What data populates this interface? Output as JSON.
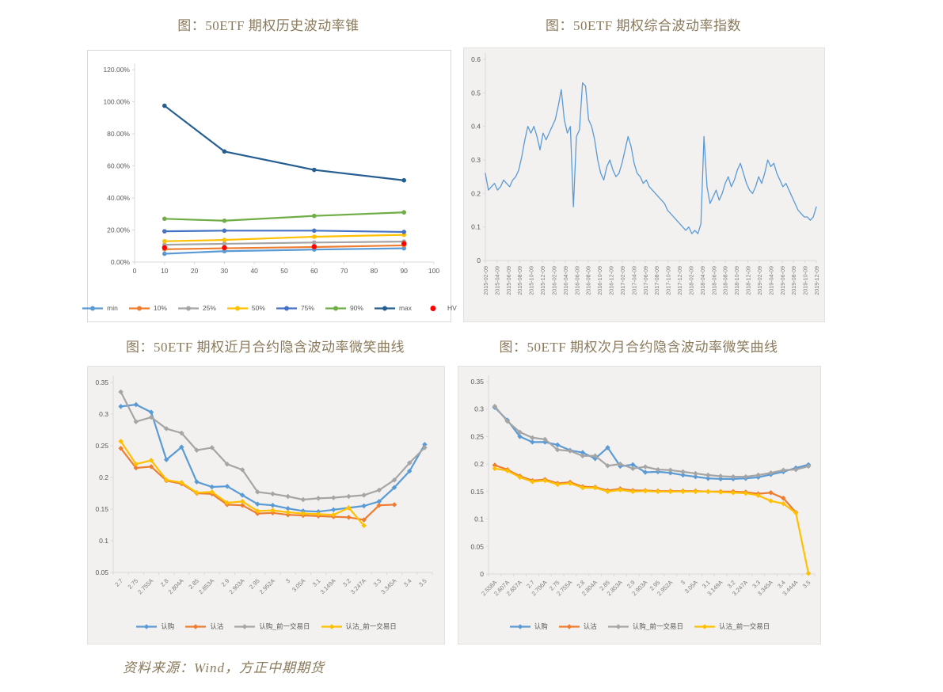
{
  "page": {
    "source_note": "资料来源：Wind，方正中期期货"
  },
  "colors": {
    "title_text": "#8a7a5c",
    "axis_text": "#595959",
    "tick_text": "#7f7f7f",
    "axis_line": "#d9d9d9",
    "light_blue": "#5B9BD5",
    "orange": "#ED7D31",
    "gray": "#A5A5A5",
    "gold": "#FFC000",
    "mid_blue": "#4472C4",
    "green": "#70AD47",
    "dark_blue": "#255E91",
    "red": "#FF0000"
  },
  "chart_data": [
    {
      "type": "line",
      "title": "图：50ETF 期权历史波动率锥",
      "x": [
        10,
        30,
        60,
        90
      ],
      "xlim": [
        0,
        100
      ],
      "xticks": [
        0,
        10,
        20,
        30,
        40,
        50,
        60,
        70,
        80,
        90,
        100
      ],
      "ylim": [
        0,
        1.2
      ],
      "yticks": [
        0,
        0.2,
        0.4,
        0.6,
        0.8,
        1.0,
        1.2
      ],
      "ytick_labels": [
        "0.00%",
        "20.00%",
        "40.00%",
        "60.00%",
        "80.00%",
        "100.00%",
        "120.00%"
      ],
      "legend_position": "bottom",
      "series": [
        {
          "name": "min",
          "color": "#5B9BD5",
          "values": [
            0.052,
            0.068,
            0.078,
            0.086
          ]
        },
        {
          "name": "10%",
          "color": "#ED7D31",
          "values": [
            0.08,
            0.086,
            0.094,
            0.104
          ]
        },
        {
          "name": "25%",
          "color": "#A5A5A5",
          "values": [
            0.108,
            0.114,
            0.122,
            0.128
          ]
        },
        {
          "name": "50%",
          "color": "#FFC000",
          "values": [
            0.13,
            0.138,
            0.158,
            0.17
          ]
        },
        {
          "name": "75%",
          "color": "#4472C4",
          "values": [
            0.192,
            0.196,
            0.196,
            0.188
          ]
        },
        {
          "name": "90%",
          "color": "#70AD47",
          "values": [
            0.27,
            0.258,
            0.288,
            0.31
          ]
        },
        {
          "name": "max",
          "color": "#255E91",
          "values": [
            0.975,
            0.69,
            0.575,
            0.51
          ]
        },
        {
          "name": "HV",
          "color": "#FF0000",
          "values": [
            0.09,
            0.09,
            0.096,
            0.115
          ],
          "markers_only": true,
          "legend_marker": "dot"
        }
      ]
    },
    {
      "type": "line",
      "title": "图：50ETF 期权综合波动率指数",
      "ylim": [
        0,
        0.6
      ],
      "yticks": [
        0,
        0.1,
        0.2,
        0.3,
        0.4,
        0.5,
        0.6
      ],
      "ytick_labels": [
        "0",
        "0.1",
        "0.2",
        "0.3",
        "0.4",
        "0.5",
        "0.6"
      ],
      "xlabels_spread": true,
      "xlabels": [
        "2015-02-09",
        "2015-04-09",
        "2015-06-09",
        "2015-08-09",
        "2015-10-09",
        "2015-12-09",
        "2016-02-09",
        "2016-04-09",
        "2016-06-09",
        "2016-08-09",
        "2016-10-09",
        "2016-12-09",
        "2017-02-09",
        "2017-04-09",
        "2017-06-09",
        "2017-08-09",
        "2017-10-09",
        "2017-12-09",
        "2018-02-09",
        "2018-04-09",
        "2018-06-09",
        "2018-08-09",
        "2018-10-09",
        "2018-12-09",
        "2019-02-09",
        "2019-04-09",
        "2019-06-09",
        "2019-08-09",
        "2019-10-09",
        "2019-12-09"
      ],
      "legend_position": "none",
      "series": [
        {
          "color": "#5B9BD5",
          "values": [
            0.26,
            0.21,
            0.22,
            0.23,
            0.21,
            0.22,
            0.24,
            0.23,
            0.22,
            0.24,
            0.25,
            0.27,
            0.31,
            0.36,
            0.4,
            0.38,
            0.4,
            0.37,
            0.33,
            0.38,
            0.36,
            0.38,
            0.4,
            0.42,
            0.46,
            0.51,
            0.42,
            0.38,
            0.4,
            0.16,
            0.37,
            0.39,
            0.53,
            0.52,
            0.42,
            0.4,
            0.36,
            0.3,
            0.26,
            0.24,
            0.28,
            0.3,
            0.27,
            0.25,
            0.26,
            0.29,
            0.33,
            0.37,
            0.34,
            0.29,
            0.26,
            0.25,
            0.23,
            0.24,
            0.22,
            0.21,
            0.2,
            0.19,
            0.18,
            0.17,
            0.15,
            0.14,
            0.13,
            0.12,
            0.11,
            0.1,
            0.09,
            0.1,
            0.08,
            0.09,
            0.08,
            0.11,
            0.37,
            0.22,
            0.17,
            0.19,
            0.21,
            0.18,
            0.2,
            0.23,
            0.25,
            0.22,
            0.24,
            0.27,
            0.29,
            0.26,
            0.23,
            0.21,
            0.2,
            0.22,
            0.25,
            0.23,
            0.26,
            0.3,
            0.28,
            0.29,
            0.26,
            0.24,
            0.22,
            0.23,
            0.21,
            0.19,
            0.17,
            0.15,
            0.14,
            0.13,
            0.13,
            0.12,
            0.13,
            0.16
          ]
        }
      ]
    },
    {
      "type": "line",
      "title": "图：50ETF 期权近月合约隐含波动率微笑曲线",
      "categories": [
        "2.7",
        "2.75",
        "2.755A",
        "2.8",
        "2.804A",
        "2.85",
        "2.853A",
        "2.9",
        "2.903A",
        "2.95",
        "2.952A",
        "3",
        "3.05A",
        "3.1",
        "3.149A",
        "3.2",
        "3.247A",
        "3.3",
        "3.345A",
        "3.4",
        "3.5"
      ],
      "ylim": [
        0.05,
        0.35
      ],
      "yticks": [
        0.05,
        0.1,
        0.15,
        0.2,
        0.25,
        0.3,
        0.35
      ],
      "ytick_labels": [
        "0.05",
        "0.1",
        "0.15",
        "0.2",
        "0.25",
        "0.3",
        "0.35"
      ],
      "legend_position": "bottom",
      "series": [
        {
          "name": "认购",
          "color": "#5B9BD5",
          "values": [
            0.312,
            0.315,
            0.303,
            0.228,
            0.248,
            0.193,
            0.185,
            0.186,
            0.172,
            0.158,
            0.156,
            0.151,
            0.147,
            0.146,
            0.149,
            0.152,
            0.155,
            0.162,
            0.184,
            0.21,
            0.252
          ]
        },
        {
          "name": "认沽",
          "color": "#ED7D31",
          "values": [
            0.246,
            0.215,
            0.217,
            0.195,
            0.19,
            0.175,
            0.174,
            0.157,
            0.156,
            0.143,
            0.144,
            0.141,
            0.14,
            0.139,
            0.138,
            0.137,
            0.133,
            0.156,
            0.157,
            null,
            null
          ]
        },
        {
          "name": "认购_前一交易日",
          "color": "#A5A5A5",
          "values": [
            0.335,
            0.288,
            0.295,
            0.277,
            0.27,
            0.243,
            0.247,
            0.221,
            0.212,
            0.177,
            0.174,
            0.17,
            0.165,
            0.167,
            0.168,
            0.17,
            0.172,
            0.18,
            0.196,
            0.223,
            0.247
          ]
        },
        {
          "name": "认沽_前一交易日",
          "color": "#FFC000",
          "values": [
            0.257,
            0.221,
            0.227,
            0.196,
            0.192,
            0.176,
            0.177,
            0.16,
            0.162,
            0.147,
            0.148,
            0.145,
            0.143,
            0.142,
            0.141,
            0.152,
            0.124,
            null,
            null,
            null,
            null
          ]
        }
      ]
    },
    {
      "type": "line",
      "title": "图：50ETF 期权次月合约隐含波动率微笑曲线",
      "categories": [
        "2.558A",
        "2.607A",
        "2.657A",
        "2.7",
        "2.706A",
        "2.75",
        "2.755A",
        "2.8",
        "2.804A",
        "2.85",
        "2.853A",
        "2.9",
        "2.903A",
        "2.95",
        "2.952A",
        "3",
        "3.05A",
        "3.1",
        "3.149A",
        "3.2",
        "3.247A",
        "3.3",
        "3.345A",
        "3.4",
        "3.444A",
        "3.5"
      ],
      "ylim": [
        0,
        0.35
      ],
      "yticks": [
        0,
        0.05,
        0.1,
        0.15,
        0.2,
        0.25,
        0.3,
        0.35
      ],
      "ytick_labels": [
        "0",
        "0.05",
        "0.1",
        "0.15",
        "0.2",
        "0.25",
        "0.3",
        "0.35"
      ],
      "legend_position": "bottom",
      "series": [
        {
          "name": "认购",
          "color": "#5B9BD5",
          "values": [
            0.303,
            0.28,
            0.25,
            0.24,
            0.24,
            0.235,
            0.225,
            0.221,
            0.21,
            0.23,
            0.196,
            0.199,
            0.185,
            0.186,
            0.184,
            0.18,
            0.177,
            0.174,
            0.173,
            0.173,
            0.174,
            0.176,
            0.181,
            0.186,
            0.193,
            0.199
          ]
        },
        {
          "name": "认沽",
          "color": "#ED7D31",
          "values": [
            0.198,
            0.19,
            0.178,
            0.17,
            0.172,
            0.165,
            0.167,
            0.159,
            0.158,
            0.152,
            0.155,
            0.152,
            0.152,
            0.151,
            0.151,
            0.151,
            0.151,
            0.15,
            0.15,
            0.15,
            0.149,
            0.146,
            0.148,
            0.138,
            0.112,
            null
          ]
        },
        {
          "name": "认购_前一交易日",
          "color": "#A5A5A5",
          "values": [
            0.305,
            0.278,
            0.258,
            0.248,
            0.245,
            0.226,
            0.224,
            0.215,
            0.215,
            0.197,
            0.2,
            0.192,
            0.195,
            0.19,
            0.189,
            0.186,
            0.183,
            0.18,
            0.178,
            0.177,
            0.177,
            0.18,
            0.184,
            0.189,
            0.19,
            0.196
          ]
        },
        {
          "name": "认沽_前一交易日",
          "color": "#FFC000",
          "values": [
            0.192,
            0.188,
            0.176,
            0.168,
            0.17,
            0.163,
            0.165,
            0.157,
            0.157,
            0.15,
            0.153,
            0.15,
            0.151,
            0.15,
            0.15,
            0.15,
            0.15,
            0.15,
            0.149,
            0.148,
            0.147,
            0.143,
            0.133,
            0.128,
            0.111,
            0.001
          ]
        }
      ]
    }
  ]
}
